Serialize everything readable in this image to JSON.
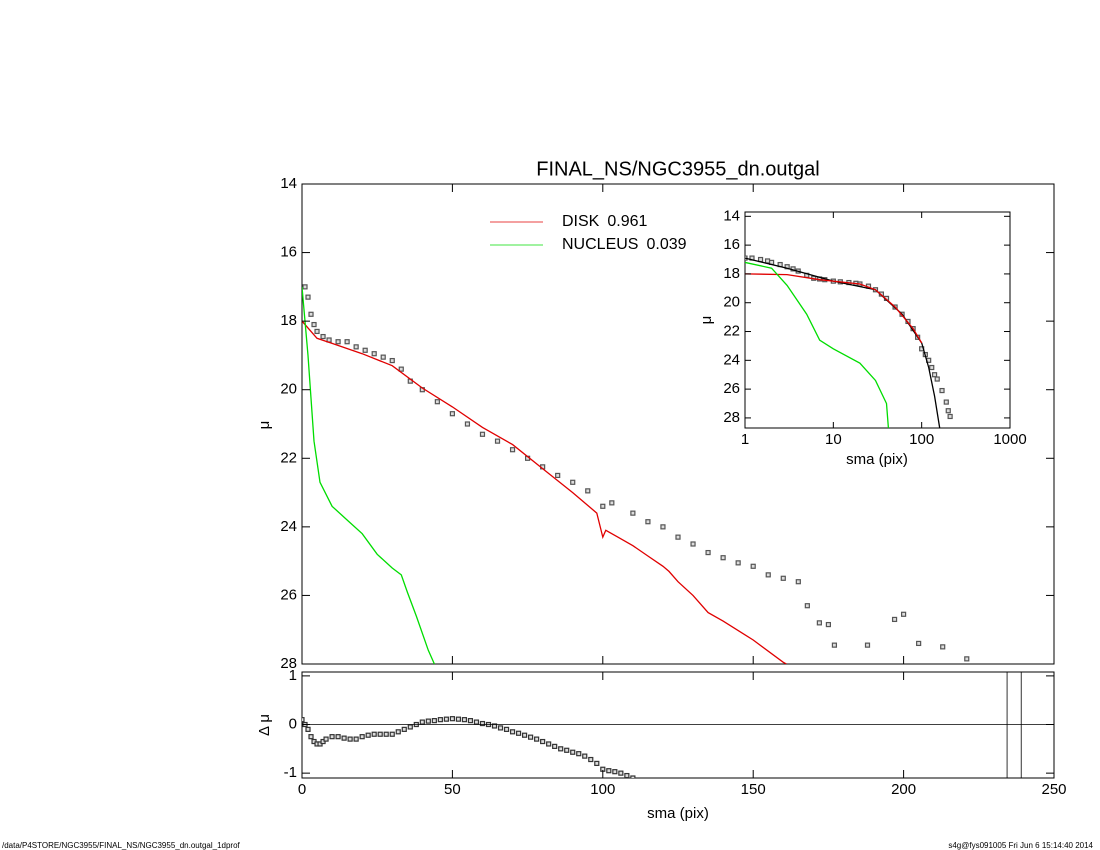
{
  "chart_data": [
    {
      "type": "profile",
      "title": "FINAL_NS/NGC3955_dn.outgal",
      "ylabel": "μ",
      "xlim": [
        0,
        250
      ],
      "ylim": [
        28,
        14
      ],
      "xticks": [
        0,
        50,
        100,
        150,
        200,
        250
      ],
      "yticks": [
        14,
        16,
        18,
        20,
        22,
        24,
        26,
        28
      ],
      "series": [
        {
          "mode": "markers",
          "color": "#555555",
          "x": [
            1,
            2,
            3,
            4,
            5,
            7,
            9,
            12,
            15,
            18,
            21,
            24,
            27,
            30,
            33,
            36,
            40,
            45,
            50,
            55,
            60,
            65,
            70,
            75,
            80,
            85,
            90,
            95,
            100,
            103,
            110,
            115,
            120,
            125,
            130,
            135,
            140,
            145,
            150,
            155,
            160,
            165,
            168,
            172,
            175,
            177,
            188,
            197,
            200,
            205,
            213,
            221
          ],
          "values": [
            17.0,
            17.3,
            17.8,
            18.1,
            18.3,
            18.45,
            18.55,
            18.6,
            18.6,
            18.75,
            18.85,
            18.95,
            19.05,
            19.15,
            19.4,
            19.75,
            20.0,
            20.35,
            20.7,
            21.0,
            21.3,
            21.5,
            21.75,
            22.0,
            22.25,
            22.5,
            22.7,
            22.95,
            23.4,
            23.3,
            23.6,
            23.85,
            24.0,
            24.3,
            24.5,
            24.75,
            24.9,
            25.05,
            25.15,
            25.4,
            25.5,
            25.6,
            26.3,
            26.8,
            26.85,
            27.45,
            27.45,
            26.7,
            26.55,
            27.4,
            27.5,
            27.85
          ]
        },
        {
          "mode": "lines",
          "name": "DISK",
          "fraction": 0.961,
          "color": "#e00000",
          "x": [
            0,
            5,
            10,
            20,
            30,
            40,
            50,
            60,
            70,
            80,
            90,
            98,
            100,
            101,
            105,
            110,
            115,
            120,
            122,
            125,
            130,
            135,
            140,
            150,
            160,
            161
          ],
          "values": [
            18.0,
            18.5,
            18.65,
            18.95,
            19.3,
            19.95,
            20.5,
            21.1,
            21.6,
            22.3,
            23.0,
            23.6,
            24.3,
            24.1,
            24.3,
            24.55,
            24.85,
            25.15,
            25.3,
            25.6,
            26.0,
            26.5,
            26.75,
            27.3,
            27.95,
            28.0
          ]
        },
        {
          "mode": "lines",
          "name": "NUCLEUS",
          "fraction": 0.039,
          "color": "#00dd00",
          "x": [
            0,
            2,
            4,
            6,
            10,
            15,
            20,
            25,
            30,
            33,
            35,
            38,
            42,
            44
          ],
          "values": [
            17.0,
            19.0,
            21.5,
            22.7,
            23.4,
            23.8,
            24.2,
            24.8,
            25.2,
            25.4,
            25.9,
            26.6,
            27.6,
            28.0
          ]
        }
      ]
    },
    {
      "type": "profile",
      "ylabel": "Δ μ",
      "xlabel": "sma (pix)",
      "xlim": [
        0,
        250
      ],
      "ylim": [
        -1.1,
        1.08
      ],
      "xticks": [
        0,
        50,
        100,
        150,
        200,
        250
      ],
      "yticks": [
        -1,
        0,
        1
      ],
      "hlines": [
        0
      ],
      "vlines": [
        234.4,
        239.1
      ],
      "series": [
        {
          "mode": "markers",
          "color": "#333333",
          "x": [
            0,
            1,
            2,
            3,
            4,
            5,
            6,
            7,
            8,
            10,
            12,
            14,
            16,
            18,
            20,
            22,
            24,
            26,
            28,
            30,
            32,
            34,
            36,
            38,
            40,
            42,
            44,
            46,
            48,
            50,
            52,
            54,
            56,
            58,
            60,
            62,
            64,
            66,
            68,
            70,
            72,
            74,
            76,
            78,
            80,
            82,
            84,
            86,
            88,
            90,
            92,
            94,
            96,
            98,
            100,
            102,
            104,
            106,
            108,
            110
          ],
          "values": [
            0.1,
            0.0,
            -0.1,
            -0.25,
            -0.35,
            -0.4,
            -0.4,
            -0.35,
            -0.3,
            -0.25,
            -0.25,
            -0.28,
            -0.3,
            -0.3,
            -0.25,
            -0.22,
            -0.2,
            -0.2,
            -0.2,
            -0.2,
            -0.15,
            -0.1,
            -0.05,
            0.0,
            0.05,
            0.07,
            0.08,
            0.1,
            0.11,
            0.12,
            0.11,
            0.1,
            0.08,
            0.05,
            0.02,
            0.0,
            -0.03,
            -0.07,
            -0.1,
            -0.15,
            -0.18,
            -0.22,
            -0.26,
            -0.3,
            -0.35,
            -0.4,
            -0.45,
            -0.5,
            -0.53,
            -0.57,
            -0.6,
            -0.65,
            -0.72,
            -0.8,
            -0.92,
            -0.95,
            -0.97,
            -1.0,
            -1.05,
            -1.1
          ]
        }
      ]
    },
    {
      "type": "profile",
      "ylabel": "μ",
      "xlabel": "sma (pix)",
      "xscale": "log",
      "xlim": [
        1,
        1000
      ],
      "ylim": [
        28.7,
        13.7
      ],
      "xticks": [
        1,
        10,
        100,
        1000
      ],
      "yticks": [
        14,
        16,
        18,
        20,
        22,
        24,
        26,
        28
      ],
      "series": [
        {
          "mode": "markers",
          "color": "#555555",
          "x": [
            1,
            1.2,
            1.5,
            1.8,
            2,
            2.5,
            3,
            3.5,
            4,
            5,
            6,
            7,
            8,
            10,
            12,
            15,
            18,
            20,
            25,
            30,
            35,
            40,
            50,
            60,
            70,
            80,
            90,
            100,
            110,
            120,
            130,
            140,
            150,
            170,
            190,
            200,
            210
          ],
          "values": [
            16.9,
            16.9,
            17.0,
            17.1,
            17.2,
            17.35,
            17.5,
            17.65,
            17.8,
            18.1,
            18.3,
            18.35,
            18.4,
            18.5,
            18.55,
            18.6,
            18.65,
            18.7,
            18.85,
            19.1,
            19.4,
            19.7,
            20.3,
            20.8,
            21.3,
            21.8,
            22.4,
            23.2,
            23.6,
            24.0,
            24.5,
            25.0,
            25.3,
            26.1,
            26.9,
            27.5,
            27.9
          ]
        },
        {
          "mode": "lines",
          "color": "#000000",
          "x": [
            1,
            3,
            10,
            30,
            60,
            100,
            120,
            140,
            160
          ],
          "values": [
            16.9,
            17.6,
            18.5,
            19.1,
            20.8,
            22.8,
            24.5,
            26.5,
            28.7
          ]
        },
        {
          "mode": "lines",
          "color": "#e00000",
          "x": [
            1,
            3,
            7,
            20,
            30,
            50,
            80,
            100
          ],
          "values": [
            18.0,
            18.05,
            18.4,
            18.7,
            19.1,
            20.3,
            21.8,
            22.8
          ]
        },
        {
          "mode": "lines",
          "color": "#00dd00",
          "x": [
            1,
            2,
            3,
            5,
            7,
            10,
            20,
            30,
            40,
            42
          ],
          "values": [
            17.2,
            17.6,
            18.8,
            20.8,
            22.6,
            23.2,
            24.2,
            25.4,
            27.0,
            28.7
          ]
        }
      ]
    }
  ],
  "footer": {
    "left": "/data/P4STORE/NGC3955/FINAL_NS/NGC3955_dn.outgal_1dprof",
    "right": "s4g@fys091005  Fri Jun  6 15:14:40 2014"
  }
}
